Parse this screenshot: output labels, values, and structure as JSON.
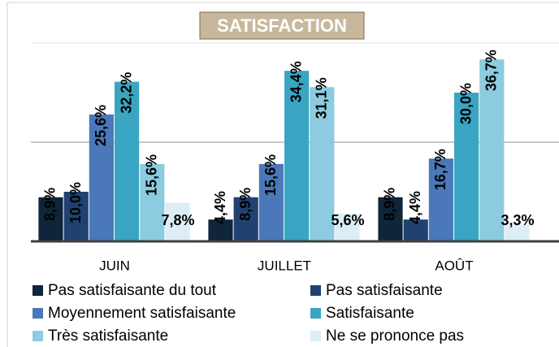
{
  "chart_data": {
    "type": "bar",
    "title": "SATISFACTION",
    "categories": [
      "JUIN",
      "JUILLET",
      "AOÛT"
    ],
    "series": [
      {
        "name": "Pas satisfaisante du tout",
        "color": "#0f2539",
        "values": [
          8.9,
          4.4,
          8.9
        ],
        "value_labels": [
          "8,9%",
          "4,4%",
          "8,9%"
        ]
      },
      {
        "name": "Pas satisfaisante",
        "color": "#1f4270",
        "values": [
          10.0,
          8.9,
          4.4
        ],
        "value_labels": [
          "10,0%",
          "8,9%",
          "4,4%"
        ]
      },
      {
        "name": "Moyennement satisfaisante",
        "color": "#4a78b8",
        "values": [
          25.6,
          15.6,
          16.7
        ],
        "value_labels": [
          "25,6%",
          "15,6%",
          "16,7%"
        ]
      },
      {
        "name": "Satisfaisante",
        "color": "#3aa5c3",
        "values": [
          32.2,
          34.4,
          30.0
        ],
        "value_labels": [
          "32,2%",
          "34,4%",
          "30,0%"
        ]
      },
      {
        "name": "Très satisfaisante",
        "color": "#8ccbe0",
        "values": [
          15.6,
          31.1,
          36.7
        ],
        "value_labels": [
          "15,6%",
          "31,1%",
          "36,7%"
        ]
      },
      {
        "name": "Ne se prononce pas",
        "color": "#dcedf5",
        "values": [
          7.8,
          5.6,
          3.3
        ],
        "value_labels": [
          "7,8%",
          "5,6%",
          "3,3%"
        ]
      }
    ],
    "ylim": [
      0,
      40
    ],
    "yticks": [
      0,
      20,
      40
    ],
    "grid": true,
    "legend": "bottom"
  }
}
